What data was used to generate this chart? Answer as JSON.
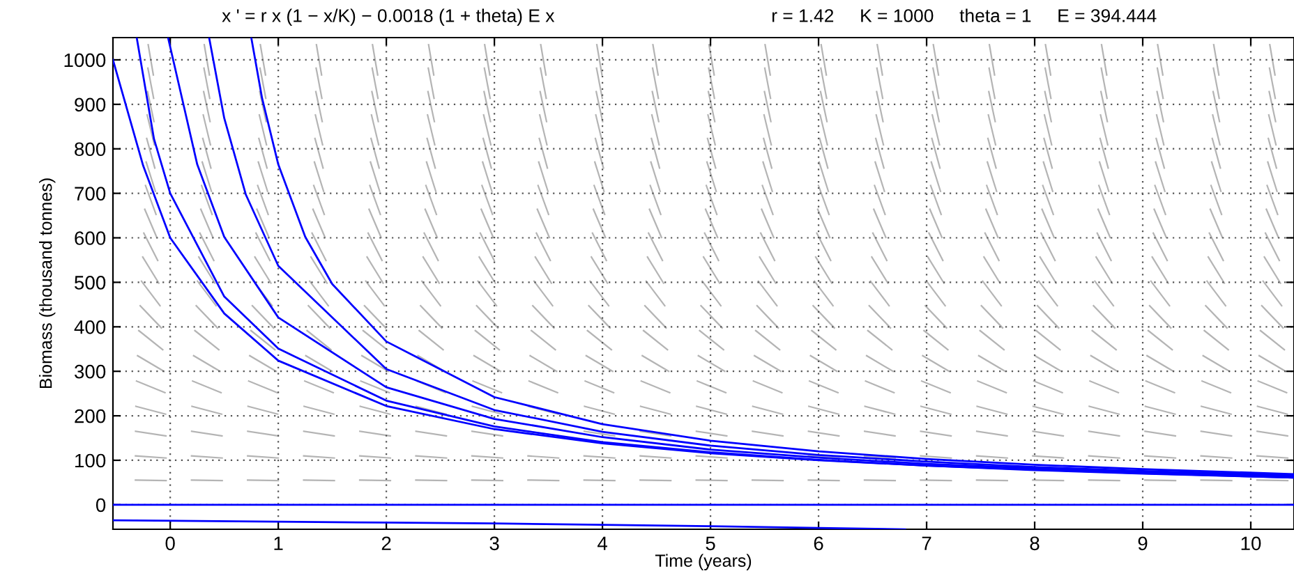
{
  "chart_data": {
    "type": "line",
    "title": "x ' = r x (1 − x/K) − 0.0018 (1 + theta) E x",
    "subtitle": "r = 1.42     K = 1000     theta = 1     E = 394.444",
    "xlabel": "Time (years)",
    "ylabel": "Biomass (thousand tonnes)",
    "xlim": [
      -0.53,
      10.4
    ],
    "ylim": [
      -55,
      1050
    ],
    "xticks": [
      0,
      1,
      2,
      3,
      4,
      5,
      6,
      7,
      8,
      9,
      10
    ],
    "yticks": [
      0,
      100,
      200,
      300,
      400,
      500,
      600,
      700,
      800,
      900,
      1000
    ],
    "grid": true,
    "marker": "none",
    "line_style": "solid",
    "series": [
      {
        "color": "#0000ff",
        "x": [
          -0.53,
          -0.25,
          0,
          0.5,
          1,
          2,
          3,
          4,
          5,
          6,
          7,
          8,
          9,
          10.4
        ],
        "values": [
          1000,
          762,
          600,
          430,
          324,
          222,
          170,
          138,
          116,
          100,
          88,
          78,
          70,
          61
        ]
      },
      {
        "color": "#0000ff",
        "x": [
          -0.31,
          -0.15,
          0,
          0.5,
          1,
          2,
          3,
          4,
          5,
          6,
          7,
          8,
          9,
          10.4
        ],
        "values": [
          1050,
          822,
          700,
          468,
          351,
          234,
          176,
          141,
          118,
          101,
          88,
          79,
          71,
          61
        ]
      },
      {
        "color": "#0000ff",
        "x": [
          -0.02,
          0.25,
          0.5,
          1,
          2,
          3,
          4,
          5,
          6,
          7,
          8,
          9,
          10.4
        ],
        "values": [
          1050,
          765,
          602,
          421,
          264,
          193,
          152,
          124,
          106,
          92,
          82,
          73,
          64
        ]
      },
      {
        "color": "#0000ff",
        "x": [
          0.36,
          0.5,
          0.7,
          1,
          2,
          3,
          4,
          5,
          6,
          7,
          8,
          9,
          10.4
        ],
        "values": [
          1050,
          869,
          697,
          537,
          305,
          213,
          164,
          133,
          112,
          97,
          85,
          76,
          66
        ]
      },
      {
        "color": "#0000ff",
        "x": [
          0.75,
          0.85,
          1,
          1.25,
          1.5,
          2,
          3,
          4,
          5,
          6,
          7,
          8,
          9,
          10.4
        ],
        "values": [
          1050,
          914,
          765,
          602,
          496,
          367,
          242,
          181,
          144,
          120,
          103,
          90,
          80,
          69
        ]
      },
      {
        "color": "#0000ff",
        "x": [
          -0.53,
          10.4
        ],
        "values": [
          0,
          0
        ]
      },
      {
        "color": "#0000ff",
        "x": [
          -0.53,
          1,
          2,
          3,
          4,
          5,
          6,
          6.8
        ],
        "values": [
          -35,
          -38,
          -40,
          -42,
          -45,
          -48,
          -52,
          -55
        ]
      }
    ]
  }
}
